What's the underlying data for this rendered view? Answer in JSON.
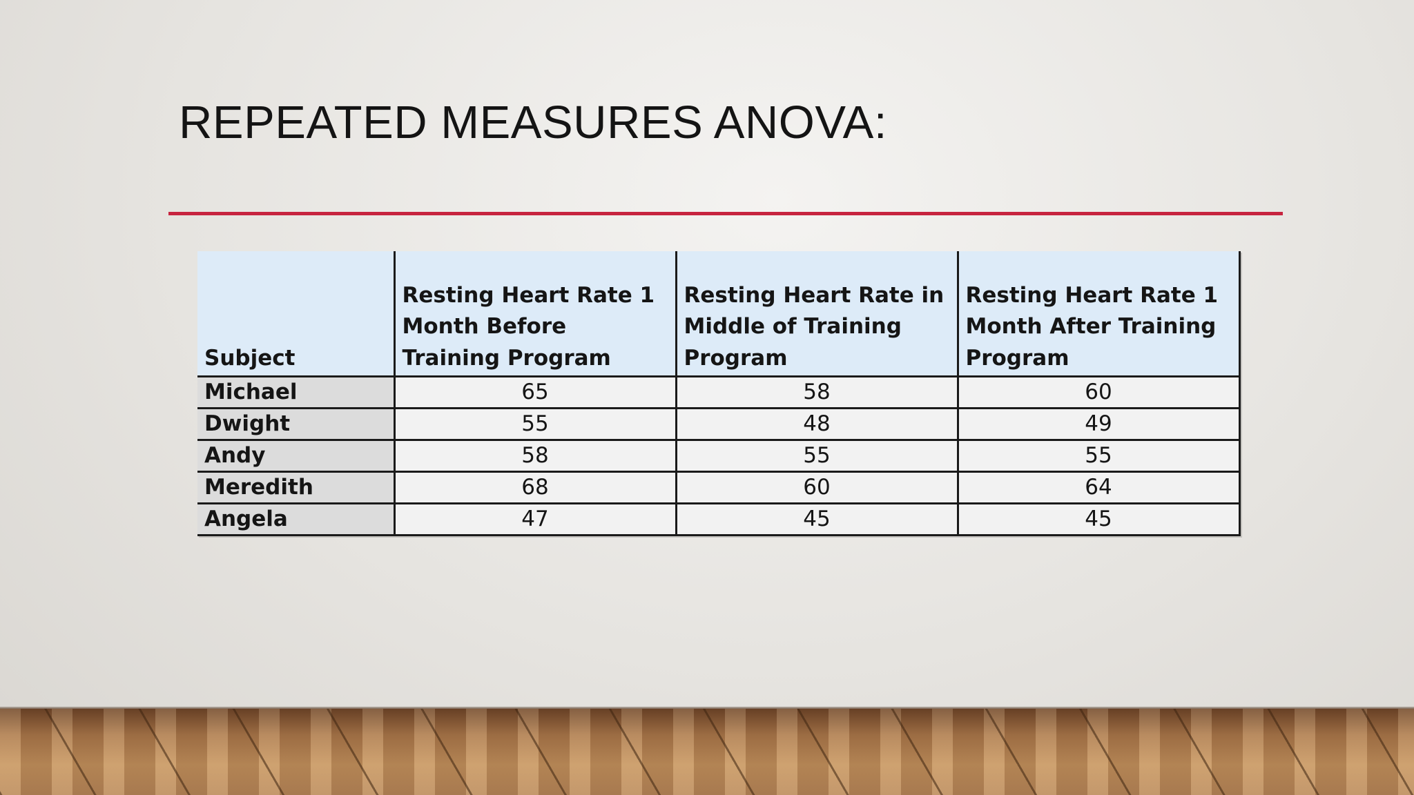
{
  "slide": {
    "title": "REPEATED MEASURES ANOVA:"
  },
  "table": {
    "headers": [
      "Subject",
      "Resting Heart Rate 1 Month Before Training Program",
      "Resting Heart Rate in Middle of Training Program",
      "Resting Heart Rate 1 Month After Training Program"
    ],
    "rows": [
      {
        "subject": "Michael",
        "values": [
          "65",
          "58",
          "60"
        ]
      },
      {
        "subject": "Dwight",
        "values": [
          "55",
          "48",
          "49"
        ]
      },
      {
        "subject": "Andy",
        "values": [
          "58",
          "55",
          "55"
        ]
      },
      {
        "subject": "Meredith",
        "values": [
          "68",
          "60",
          "64"
        ]
      },
      {
        "subject": "Angela",
        "values": [
          "47",
          "45",
          "45"
        ]
      }
    ]
  },
  "colors": {
    "accent_rule": "#c7243f",
    "header_fill": "#ddebf8",
    "subject_fill": "#dcdcdc",
    "value_fill": "#f2f2f2"
  }
}
